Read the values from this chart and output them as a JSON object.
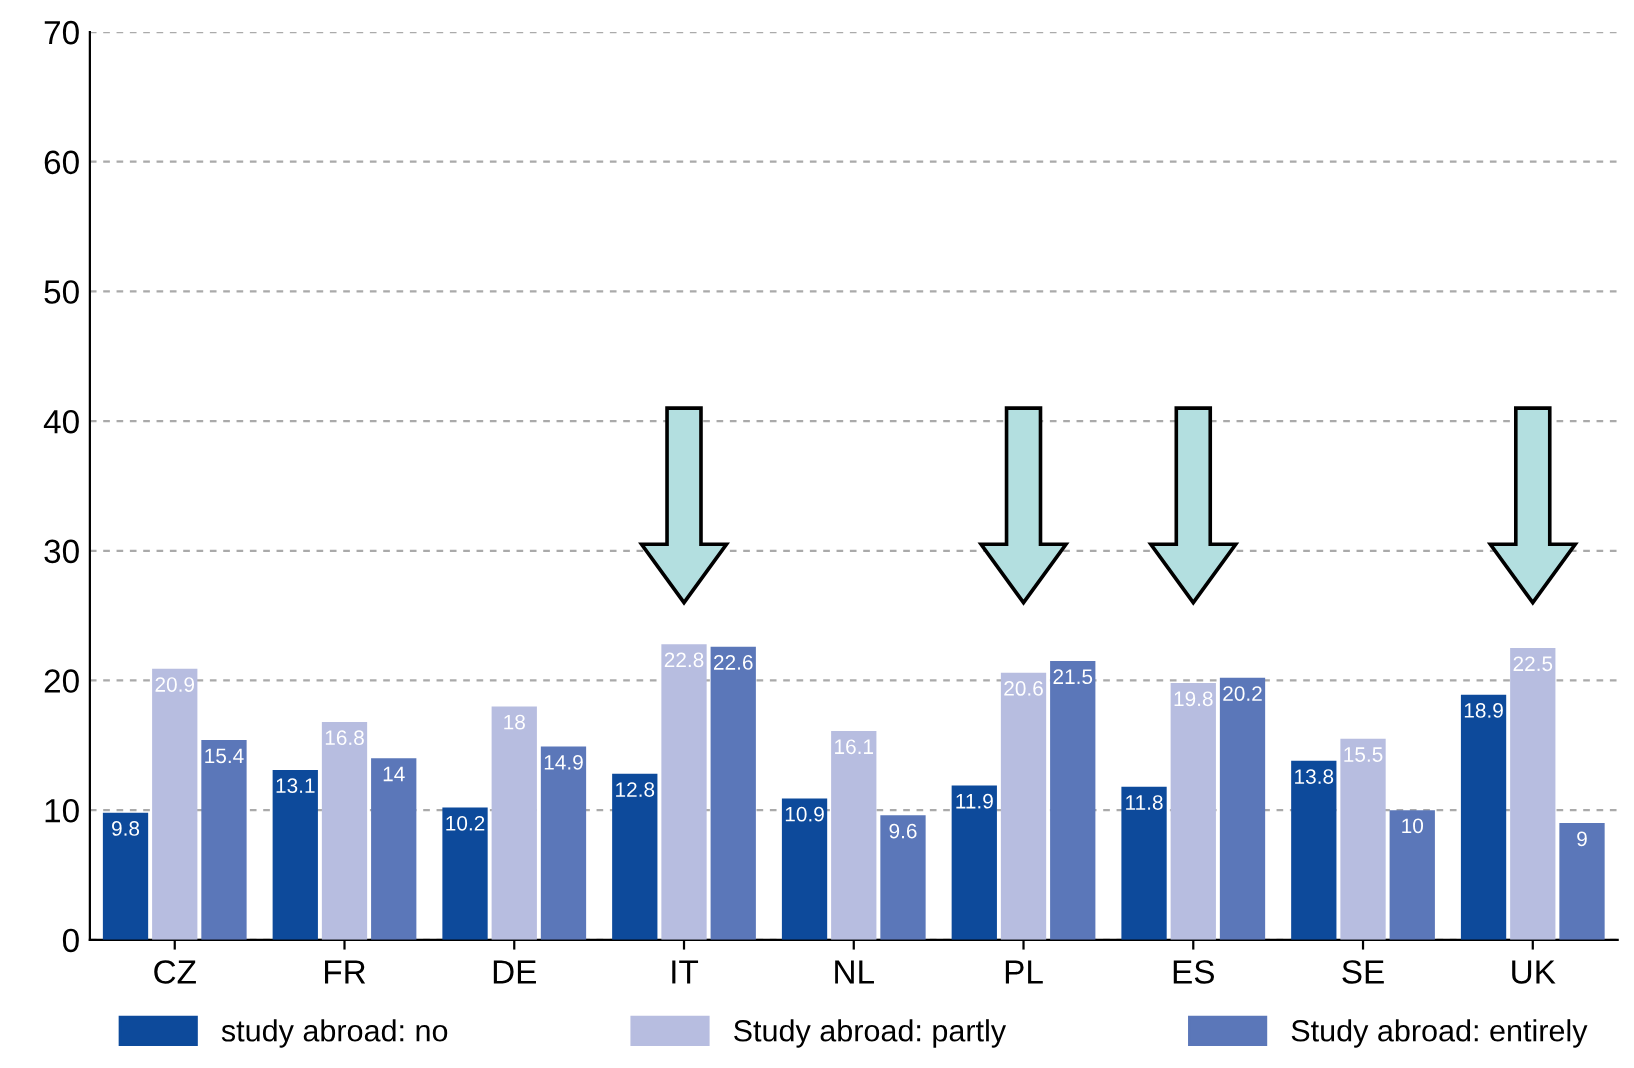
{
  "chart_data": {
    "type": "bar",
    "categories": [
      "CZ",
      "FR",
      "DE",
      "IT",
      "NL",
      "PL",
      "ES",
      "SE",
      "UK"
    ],
    "series": [
      {
        "name": "study abroad: no",
        "color": "#0d4a9b",
        "values": [
          9.8,
          13.1,
          10.2,
          12.8,
          10.9,
          11.9,
          11.8,
          13.8,
          18.9
        ]
      },
      {
        "name": "Study abroad: partly",
        "color": "#b7bde0",
        "values": [
          20.9,
          16.8,
          18,
          22.8,
          16.1,
          20.6,
          19.8,
          15.5,
          22.5
        ]
      },
      {
        "name": "Study abroad: entirely",
        "color": "#5b77b9",
        "values": [
          15.4,
          14,
          14.9,
          22.6,
          9.6,
          21.5,
          20.2,
          10,
          9
        ]
      }
    ],
    "ylim": [
      0,
      70
    ],
    "yticks": [
      0,
      10,
      20,
      30,
      40,
      50,
      60,
      70
    ],
    "grid": "y",
    "legend": "bottom",
    "data_labels": true
  }
}
